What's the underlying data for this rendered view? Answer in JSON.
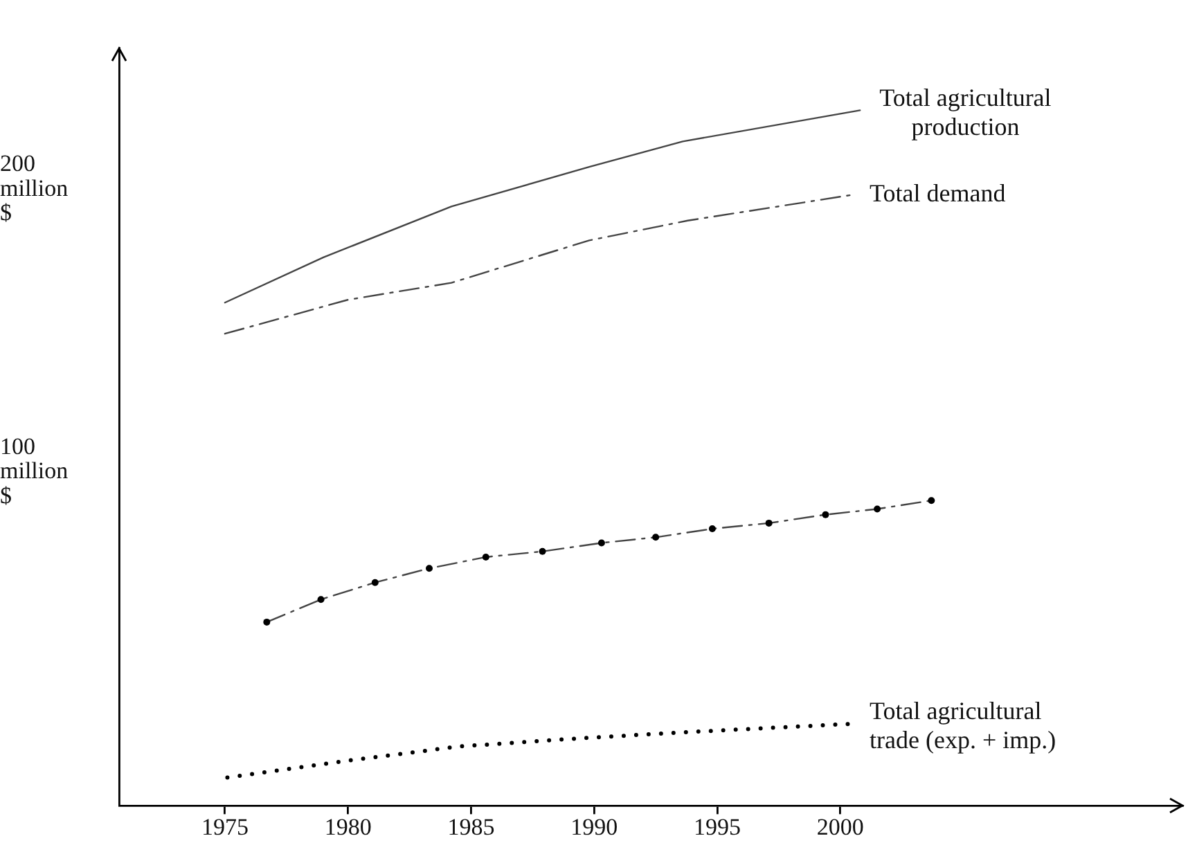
{
  "chart_data": {
    "type": "line",
    "xlim": [
      1970.7,
      2013.9
    ],
    "xticks": [
      1975,
      1980,
      1985,
      1990,
      1995,
      2000
    ],
    "ylim": [
      -18,
      250
    ],
    "yticks": [
      {
        "value": 100,
        "label": "100 million $"
      },
      {
        "value": 200,
        "label": "200 million $"
      }
    ],
    "grid": false,
    "legend": false,
    "series": [
      {
        "name": "Total agricultural production",
        "color": "#444444",
        "line_style": "solid",
        "marker": "none",
        "x": [
          1975,
          1979,
          1984.2,
          1989.8,
          1993.6,
          2000.8
        ],
        "values": [
          160,
          176,
          194,
          208,
          217,
          228
        ]
      },
      {
        "name": "Total demand",
        "color": "#444444",
        "line_style": "dashed",
        "marker": "none",
        "x": [
          1975,
          1980,
          1984.2,
          1989.8,
          1993.8,
          2000.4
        ],
        "values": [
          149,
          161,
          167,
          182,
          189,
          198
        ]
      },
      {
        "color": "#444444",
        "line_style": "dashed",
        "marker": "circle",
        "x": [
          1976.7,
          1978.9,
          1981.1,
          1983.3,
          1985.6,
          1987.9,
          1990.3,
          1992.5,
          1994.8,
          1997.1,
          1999.4,
          2001.5,
          2003.7
        ],
        "values": [
          47,
          55,
          61,
          66,
          70,
          72,
          75,
          77,
          80,
          82,
          85,
          87,
          90
        ]
      },
      {
        "name": "Total agricultural trade (exp. + imp.)",
        "color": "#000000",
        "line_style": "dotted",
        "marker": "none",
        "x": [
          1975.1,
          1980,
          1984.5,
          1989.6,
          1993.6,
          2000.4
        ],
        "values": [
          -8,
          -2,
          3,
          6,
          8,
          11
        ]
      }
    ]
  }
}
